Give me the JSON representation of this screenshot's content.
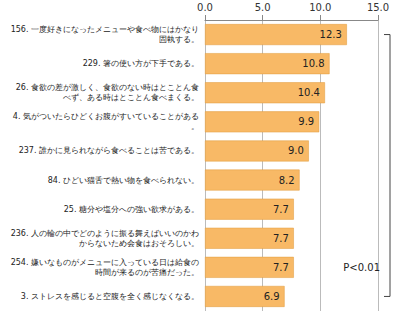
{
  "chart_data": {
    "type": "bar",
    "orientation": "horizontal",
    "categories": [
      "156. 一度好きになったメニューや食べ物にはかなり固執する。",
      "229. 箸の使い方が下手である。",
      "26. 食欲の差が激しく、食欲のない時はとことん食べず、ある時はとことん食べまくる。",
      "4. 気がついたらひどくお腹がすいていることがある。",
      "237. 誰かに見られながら食べることは苦である。",
      "84. ひどい猫舌で熱い物を食べられない。",
      "25. 糖分や塩分への強い欲求がある。",
      "236. 人の輪の中でどのように振る舞えばいいのかわからないため会食はおそろしい。",
      "254. 嫌いなものがメニューに入っている日は給食の時間が来るのが苦痛だった。",
      "3. ストレスを感じると空腹を全く感じなくなる。"
    ],
    "values": [
      12.3,
      10.8,
      10.4,
      9.9,
      9.0,
      8.2,
      7.7,
      7.7,
      7.7,
      6.9
    ],
    "value_labels": [
      "12.3",
      "10.8",
      "10.4",
      "9.9",
      "9.0",
      "8.2",
      "7.7",
      "7.7",
      "7.7",
      "6.9"
    ],
    "data_labels": true,
    "color": "#f8b966",
    "xlim": [
      0,
      15
    ],
    "xticks": [
      {
        "value": 0,
        "label": "0.0"
      },
      {
        "value": 5,
        "label": "5.0"
      },
      {
        "value": 10,
        "label": "10.0"
      },
      {
        "value": 15,
        "label": "15.0"
      }
    ],
    "grid": true,
    "annotation": "P<0.01"
  }
}
